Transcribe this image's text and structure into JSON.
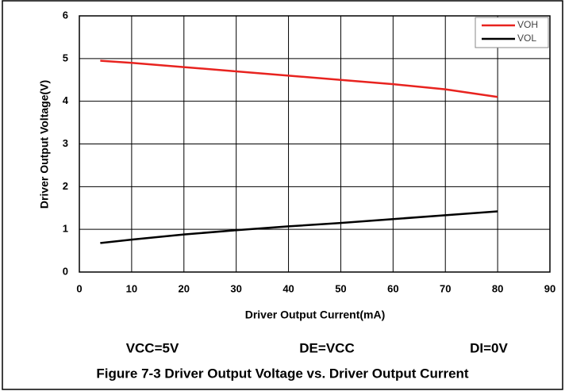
{
  "chart_data": {
    "type": "line",
    "title": "Figure 7-3 Driver Output Voltage vs. Driver Output Current",
    "xlabel": "Driver Output Current(mA)",
    "ylabel": "Driver Output Voltage(V)",
    "annotations": [
      "VCC=5V",
      "DE=VCC",
      "DI=0V"
    ],
    "x": [
      4,
      10,
      20,
      30,
      40,
      50,
      60,
      70,
      80
    ],
    "series": [
      {
        "name": "VOH",
        "color": "#e8231f",
        "values": [
          4.95,
          4.9,
          4.8,
          4.7,
          4.6,
          4.5,
          4.4,
          4.28,
          4.1
        ]
      },
      {
        "name": "VOL",
        "color": "#000000",
        "values": [
          0.68,
          0.76,
          0.88,
          0.98,
          1.07,
          1.15,
          1.24,
          1.33,
          1.42
        ]
      }
    ],
    "xlim": [
      0,
      90
    ],
    "xticks": [
      0,
      10,
      20,
      30,
      40,
      50,
      60,
      70,
      80,
      90
    ],
    "ylim": [
      0,
      6
    ],
    "yticks": [
      0,
      1,
      2,
      3,
      4,
      5,
      6
    ],
    "grid": true,
    "legend": "upper right"
  }
}
